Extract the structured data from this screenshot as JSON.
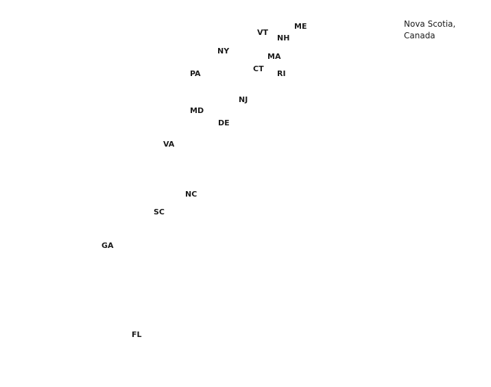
{
  "map": {
    "caption": {
      "line1": "Nova Scotia,",
      "line2": "Canada"
    },
    "states": {
      "me": "ME",
      "vt": "VT",
      "nh": "NH",
      "ny": "NY",
      "ma": "MA",
      "ct": "CT",
      "pa": "PA",
      "ri": "RI",
      "nj": "NJ",
      "md": "MD",
      "de": "DE",
      "va": "VA",
      "nc": "NC",
      "sc": "SC",
      "ga": "GA",
      "fl": "FL"
    }
  }
}
